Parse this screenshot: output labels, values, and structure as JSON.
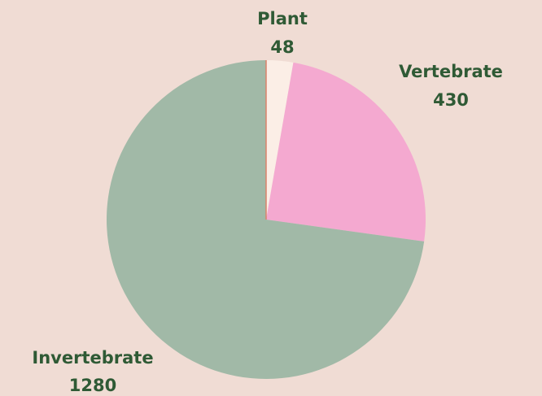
{
  "chart_data": {
    "type": "pie",
    "title": "",
    "slices": [
      {
        "label": "Plant",
        "value": 48,
        "color": "#fbeee6"
      },
      {
        "label": "Vertebrate",
        "value": 430,
        "color": "#f4a9d0"
      },
      {
        "label": "Invertebrate",
        "value": 1280,
        "color": "#a1b9a7"
      }
    ],
    "start": "top",
    "direction": "clockwise",
    "background": "#f0dcd4",
    "label_color": "#2f5a35",
    "outline_color": "#d9826b"
  }
}
